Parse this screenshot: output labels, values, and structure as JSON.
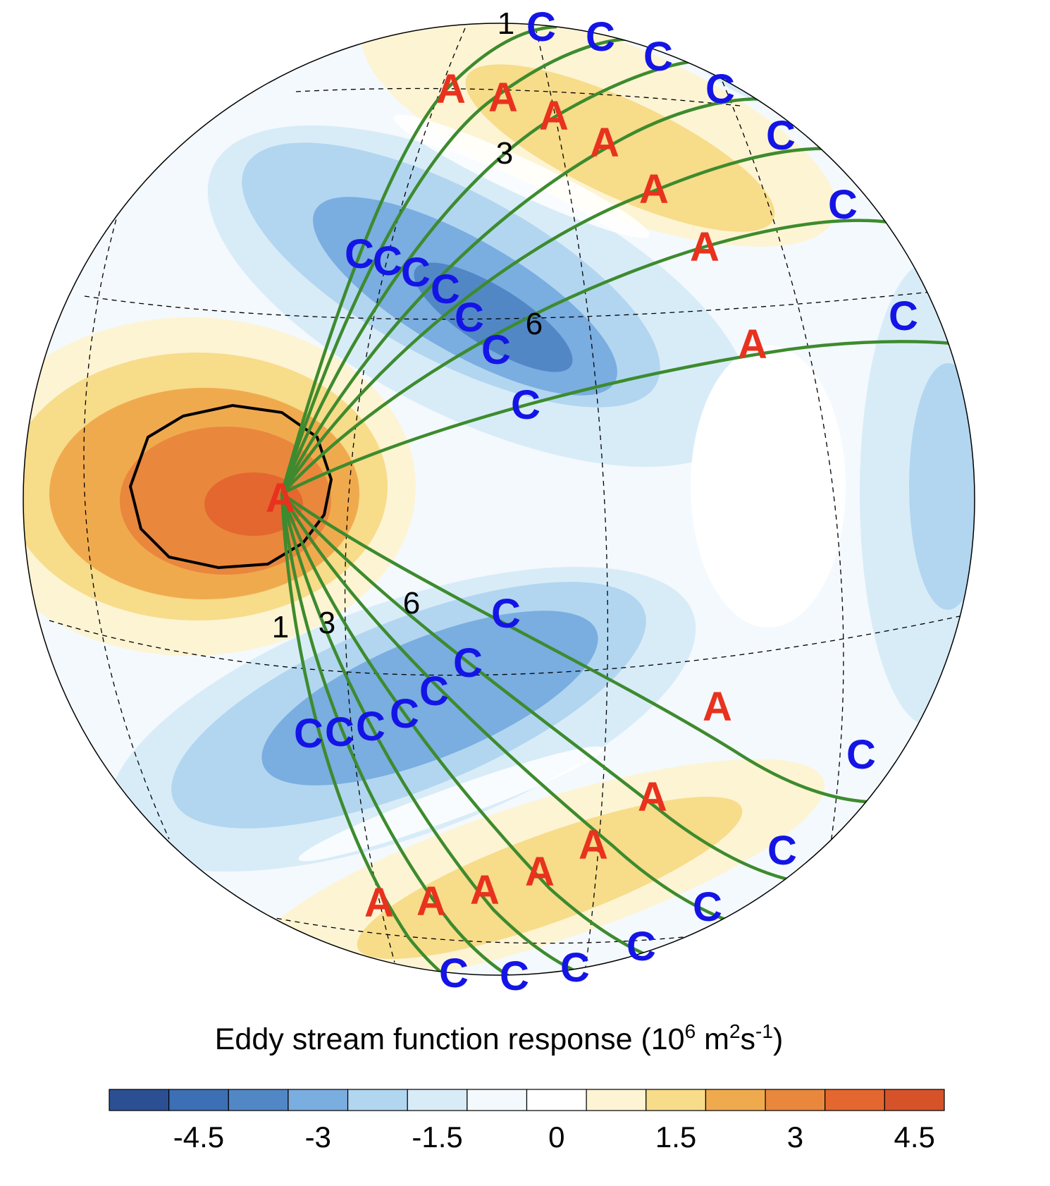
{
  "colorbar": {
    "title": "Eddy stream function response (10",
    "title_exp1": "6",
    "title_mid": " m",
    "title_exp2": "2",
    "title_s": "s",
    "title_exp3": "-1",
    "title_end": ")",
    "ticks": [
      "-4.5",
      "-3",
      "-1.5",
      "0",
      "1.5",
      "3",
      "4.5"
    ],
    "colors": [
      "#2c4f93",
      "#3d6fb5",
      "#5287c6",
      "#7aade0",
      "#b2d6f0",
      "#d8ecf8",
      "#f4f9fd",
      "#ffffff",
      "#fdf4d4",
      "#f7dc8a",
      "#f0aa4e",
      "#e9873d",
      "#e4672f",
      "#d6532a"
    ]
  },
  "legend_colors": {
    "A_label": "#e8321e",
    "C_label": "#1414e6",
    "ray": "#3d8b2e",
    "contour": "#000000"
  },
  "ray_labels": {
    "source_A": "A",
    "north": {
      "outer_C": [
        "C",
        "C",
        "C",
        "C",
        "C",
        "C",
        "C"
      ],
      "mid_A": [
        "A",
        "A",
        "A",
        "A",
        "A",
        "A",
        "A"
      ],
      "inner_C": [
        "C",
        "C",
        "C",
        "C",
        "C",
        "C",
        "C"
      ]
    },
    "south": {
      "outer_C": [
        "C",
        "C",
        "C",
        "C",
        "C",
        "C",
        "C"
      ],
      "mid_A": [
        "A",
        "A",
        "A",
        "A",
        "A",
        "A",
        "A"
      ],
      "inner_C": [
        "C",
        "C",
        "C",
        "C",
        "C",
        "C"
      ]
    }
  },
  "wavenumber_labels": {
    "north_1": "1",
    "north_3": "3",
    "north_6": "6",
    "south_1": "1",
    "south_3": "3",
    "south_6": "6"
  }
}
